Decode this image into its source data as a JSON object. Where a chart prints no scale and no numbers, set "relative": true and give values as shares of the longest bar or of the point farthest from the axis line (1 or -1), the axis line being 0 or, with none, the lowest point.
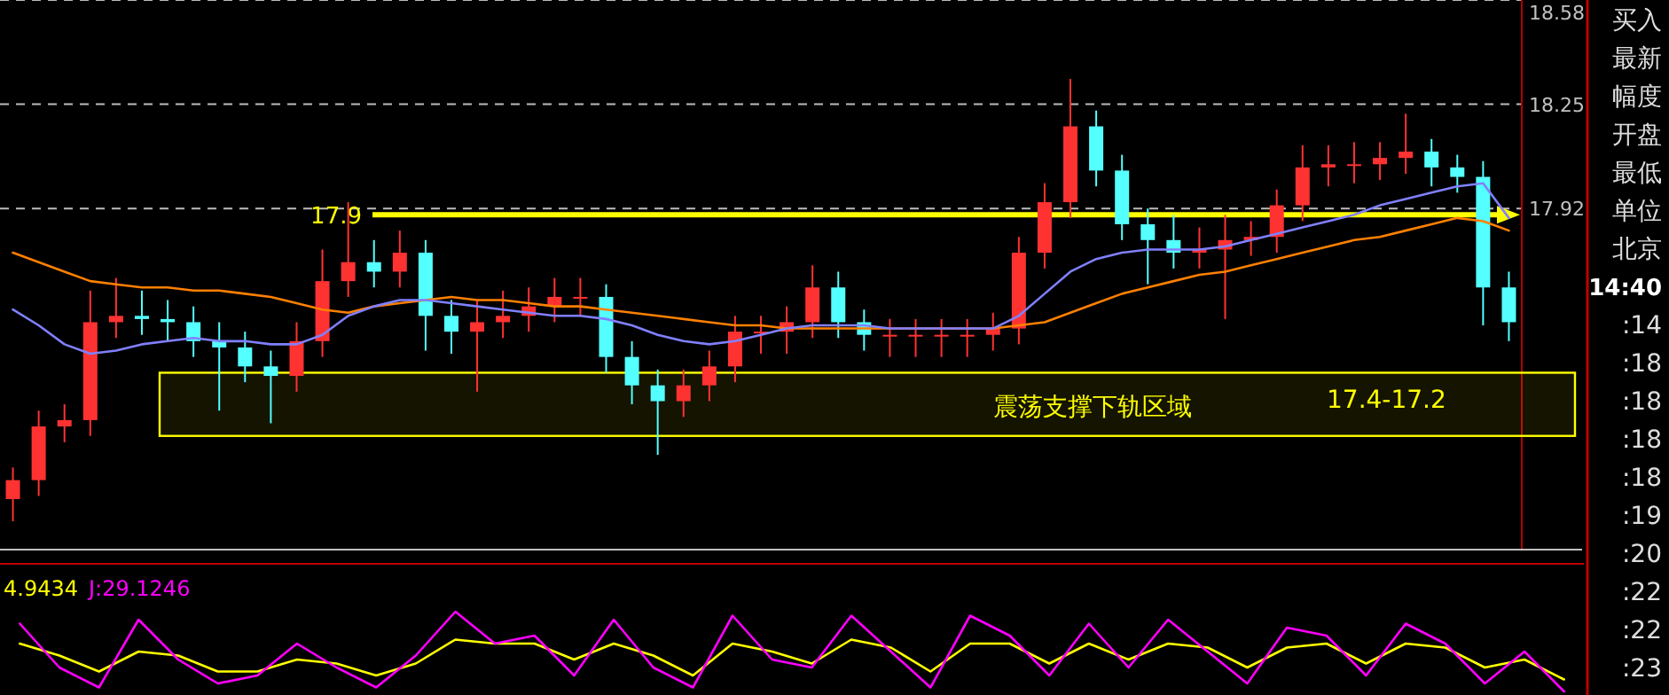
{
  "chart_data": [
    {
      "type": "candlestick",
      "categories": [
        null,
        null,
        null,
        null,
        null,
        null,
        null,
        null,
        null,
        null,
        null,
        null,
        null,
        null,
        null,
        null,
        null,
        null,
        null,
        null,
        null,
        null,
        null,
        null,
        null,
        null,
        null,
        null,
        null,
        null,
        null,
        null,
        null,
        null,
        null,
        null,
        null,
        null,
        null,
        null,
        null,
        null,
        null,
        null,
        null,
        null,
        null,
        null,
        null,
        null,
        null,
        null,
        null,
        null,
        null,
        null,
        null,
        null,
        null
      ],
      "ohlc": [
        [
          17.0,
          17.1,
          16.93,
          17.06
        ],
        [
          17.06,
          17.28,
          17.01,
          17.23
        ],
        [
          17.23,
          17.3,
          17.18,
          17.25
        ],
        [
          17.25,
          17.66,
          17.2,
          17.56
        ],
        [
          17.56,
          17.7,
          17.51,
          17.58
        ],
        [
          17.58,
          17.66,
          17.52,
          17.57
        ],
        [
          17.57,
          17.63,
          17.5,
          17.56
        ],
        [
          17.56,
          17.61,
          17.45,
          17.5
        ],
        [
          17.5,
          17.56,
          17.28,
          17.48
        ],
        [
          17.48,
          17.53,
          17.37,
          17.42
        ],
        [
          17.42,
          17.47,
          17.24,
          17.39
        ],
        [
          17.39,
          17.56,
          17.34,
          17.5
        ],
        [
          17.5,
          17.79,
          17.45,
          17.69
        ],
        [
          17.69,
          17.94,
          17.64,
          17.75
        ],
        [
          17.75,
          17.82,
          17.67,
          17.72
        ],
        [
          17.72,
          17.85,
          17.67,
          17.78
        ],
        [
          17.78,
          17.82,
          17.47,
          17.58
        ],
        [
          17.58,
          17.63,
          17.46,
          17.53
        ],
        [
          17.53,
          17.63,
          17.34,
          17.56
        ],
        [
          17.56,
          17.66,
          17.51,
          17.58
        ],
        [
          17.58,
          17.67,
          17.53,
          17.61
        ],
        [
          17.61,
          17.7,
          17.56,
          17.64
        ],
        [
          17.64,
          17.7,
          17.58,
          17.64
        ],
        [
          17.64,
          17.68,
          17.4,
          17.45
        ],
        [
          17.45,
          17.5,
          17.3,
          17.36
        ],
        [
          17.36,
          17.41,
          17.14,
          17.31
        ],
        [
          17.31,
          17.41,
          17.26,
          17.36
        ],
        [
          17.36,
          17.47,
          17.31,
          17.42
        ],
        [
          17.42,
          17.58,
          17.37,
          17.53
        ],
        [
          17.53,
          17.58,
          17.46,
          17.53
        ],
        [
          17.53,
          17.61,
          17.46,
          17.56
        ],
        [
          17.56,
          17.74,
          17.51,
          17.67
        ],
        [
          17.67,
          17.72,
          17.51,
          17.56
        ],
        [
          17.56,
          17.6,
          17.47,
          17.52
        ],
        [
          17.52,
          17.57,
          17.45,
          17.52
        ],
        [
          17.52,
          17.57,
          17.45,
          17.52
        ],
        [
          17.52,
          17.57,
          17.45,
          17.52
        ],
        [
          17.52,
          17.57,
          17.45,
          17.52
        ],
        [
          17.52,
          17.59,
          17.47,
          17.54
        ],
        [
          17.54,
          17.83,
          17.49,
          17.78
        ],
        [
          17.78,
          18.0,
          17.73,
          17.94
        ],
        [
          17.94,
          18.33,
          17.89,
          18.18
        ],
        [
          18.18,
          18.23,
          17.99,
          18.04
        ],
        [
          18.04,
          18.09,
          17.82,
          17.87
        ],
        [
          17.87,
          17.92,
          17.68,
          17.82
        ],
        [
          17.82,
          17.9,
          17.73,
          17.78
        ],
        [
          17.78,
          17.86,
          17.73,
          17.79
        ],
        [
          17.79,
          17.9,
          17.57,
          17.82
        ],
        [
          17.82,
          17.88,
          17.77,
          17.83
        ],
        [
          17.83,
          17.98,
          17.78,
          17.93
        ],
        [
          17.93,
          18.12,
          17.88,
          18.05
        ],
        [
          18.05,
          18.12,
          17.99,
          18.06
        ],
        [
          18.06,
          18.13,
          18.0,
          18.06
        ],
        [
          18.06,
          18.13,
          18.01,
          18.08
        ],
        [
          18.08,
          18.22,
          18.03,
          18.1
        ],
        [
          18.1,
          18.14,
          17.99,
          18.05
        ],
        [
          18.05,
          18.09,
          17.97,
          18.02
        ],
        [
          18.02,
          18.07,
          17.55,
          17.67
        ],
        [
          17.67,
          17.72,
          17.5,
          17.56
        ]
      ],
      "series": [
        {
          "type": "line",
          "color": "#ff8000",
          "values": [
            17.78,
            17.75,
            17.72,
            17.69,
            17.68,
            17.67,
            17.67,
            17.66,
            17.66,
            17.65,
            17.64,
            17.62,
            17.6,
            17.59,
            17.61,
            17.62,
            17.63,
            17.64,
            17.63,
            17.63,
            17.62,
            17.61,
            17.61,
            17.6,
            17.59,
            17.58,
            17.57,
            17.56,
            17.55,
            17.55,
            17.54,
            17.54,
            17.54,
            17.54,
            17.54,
            17.54,
            17.54,
            17.54,
            17.54,
            17.55,
            17.56,
            17.59,
            17.62,
            17.65,
            17.67,
            17.69,
            17.71,
            17.72,
            17.74,
            17.76,
            17.78,
            17.8,
            17.82,
            17.83,
            17.85,
            17.87,
            17.89,
            17.88,
            17.85
          ]
        },
        {
          "type": "line",
          "color": "#8080ff",
          "values": [
            17.6,
            17.55,
            17.49,
            17.46,
            17.47,
            17.49,
            17.5,
            17.51,
            17.5,
            17.5,
            17.49,
            17.49,
            17.52,
            17.58,
            17.61,
            17.63,
            17.63,
            17.62,
            17.61,
            17.6,
            17.59,
            17.58,
            17.58,
            17.57,
            17.55,
            17.52,
            17.5,
            17.49,
            17.5,
            17.52,
            17.54,
            17.55,
            17.55,
            17.55,
            17.54,
            17.54,
            17.54,
            17.54,
            17.54,
            17.58,
            17.65,
            17.72,
            17.76,
            17.78,
            17.79,
            17.79,
            17.79,
            17.8,
            17.82,
            17.84,
            17.86,
            17.88,
            17.9,
            17.93,
            17.95,
            17.97,
            17.99,
            18.0,
            17.89
          ]
        }
      ],
      "ylim": [
        16.84,
        18.58
      ],
      "yticks": [
        17.92,
        18.25,
        18.58
      ],
      "grid": "y",
      "ref_lines": [
        {
          "axis": "y",
          "value": 17.9,
          "label": "17.9",
          "color": "#ffff00"
        }
      ],
      "bands": [
        {
          "axis": "y",
          "from": 17.2,
          "to": 17.4,
          "label": "震荡支撑下轨区域",
          "color": "#ffff00"
        }
      ],
      "annotations": [
        "17.4-17.2"
      ]
    },
    {
      "type": "line",
      "relative": true,
      "legend": "top left",
      "categories": [
        null,
        null,
        null,
        null,
        null,
        null,
        null,
        null,
        null,
        null,
        null,
        null,
        null,
        null,
        null,
        null,
        null,
        null,
        null,
        null,
        null,
        null,
        null,
        null,
        null,
        null,
        null,
        null,
        null,
        null,
        null,
        null,
        null,
        null,
        null,
        null,
        null,
        null,
        null,
        null
      ],
      "series": [
        {
          "name": "4.9434",
          "color": "#ffff00",
          "values": [
            0.6,
            0.45,
            0.25,
            0.5,
            0.45,
            0.25,
            0.25,
            0.4,
            0.35,
            0.2,
            0.35,
            0.65,
            0.6,
            0.6,
            0.4,
            0.6,
            0.45,
            0.2,
            0.6,
            0.5,
            0.35,
            0.65,
            0.55,
            0.25,
            0.6,
            0.6,
            0.35,
            0.6,
            0.4,
            0.6,
            0.55,
            0.3,
            0.55,
            0.6,
            0.35,
            0.6,
            0.55,
            0.3,
            0.4,
            0.15
          ]
        },
        {
          "name": "J:29.1246",
          "color": "#ff00ff",
          "values": [
            0.85,
            0.3,
            0.05,
            0.9,
            0.4,
            0.1,
            0.2,
            0.6,
            0.3,
            0.05,
            0.45,
            1.0,
            0.6,
            0.7,
            0.2,
            0.9,
            0.3,
            0.05,
            0.95,
            0.4,
            0.3,
            0.95,
            0.5,
            0.05,
            0.95,
            0.7,
            0.2,
            0.85,
            0.3,
            0.9,
            0.5,
            0.1,
            0.8,
            0.7,
            0.2,
            0.85,
            0.6,
            0.1,
            0.5,
            0.0
          ]
        }
      ]
    },
    {
      "type": "other",
      "annotations": [
        "买入",
        "最新",
        "幅度",
        "开盘",
        "最低",
        "单位",
        "北京",
        "14:40",
        ":14",
        ":18",
        ":18",
        ":18",
        ":18",
        ":19",
        ":20",
        ":22",
        ":22",
        ":23"
      ]
    }
  ]
}
